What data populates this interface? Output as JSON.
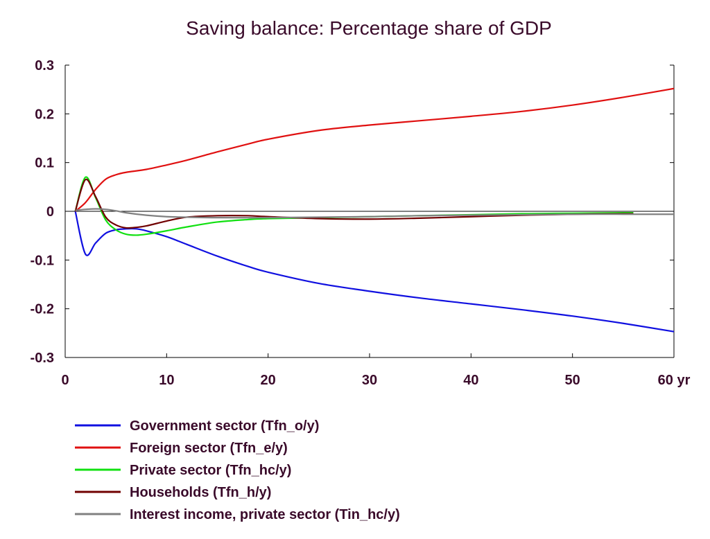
{
  "chart_data": {
    "type": "line",
    "title": "Saving balance: Percentage share of GDP",
    "xlabel": "",
    "ylabel": "",
    "xlim": [
      0,
      60
    ],
    "ylim": [
      -0.3,
      0.3
    ],
    "x_ticks": [
      {
        "value": 0,
        "label": "0"
      },
      {
        "value": 10,
        "label": "10"
      },
      {
        "value": 20,
        "label": "20"
      },
      {
        "value": 30,
        "label": "30"
      },
      {
        "value": 40,
        "label": "40"
      },
      {
        "value": 50,
        "label": "50"
      },
      {
        "value": 60,
        "label": "60 yr"
      }
    ],
    "y_ticks": [
      {
        "value": 0.3,
        "label": "0.3"
      },
      {
        "value": 0.2,
        "label": "0.2"
      },
      {
        "value": 0.1,
        "label": "0.1"
      },
      {
        "value": 0,
        "label": "0"
      },
      {
        "value": -0.1,
        "label": "-0.1"
      },
      {
        "value": -0.2,
        "label": "-0.2"
      },
      {
        "value": -0.3,
        "label": "-0.3"
      }
    ],
    "zero_line": true,
    "grid": false,
    "legend_position": "bottom",
    "series": [
      {
        "name": "Government sector (Tfn_o/y)",
        "color": "#1010e0",
        "points": [
          [
            1,
            0
          ],
          [
            2,
            -0.088
          ],
          [
            3,
            -0.065
          ],
          [
            4,
            -0.045
          ],
          [
            5,
            -0.038
          ],
          [
            6,
            -0.036
          ],
          [
            7,
            -0.036
          ],
          [
            8,
            -0.04
          ],
          [
            10,
            -0.052
          ],
          [
            12,
            -0.068
          ],
          [
            15,
            -0.092
          ],
          [
            18,
            -0.113
          ],
          [
            20,
            -0.125
          ],
          [
            25,
            -0.148
          ],
          [
            30,
            -0.164
          ],
          [
            35,
            -0.178
          ],
          [
            40,
            -0.19
          ],
          [
            45,
            -0.202
          ],
          [
            50,
            -0.215
          ],
          [
            55,
            -0.23
          ],
          [
            60,
            -0.247
          ]
        ]
      },
      {
        "name": "Foreign sector (Tfn_e/y)",
        "color": "#e01010",
        "points": [
          [
            1,
            0
          ],
          [
            2,
            0.018
          ],
          [
            3,
            0.045
          ],
          [
            4,
            0.066
          ],
          [
            5,
            0.075
          ],
          [
            6,
            0.08
          ],
          [
            8,
            0.086
          ],
          [
            10,
            0.095
          ],
          [
            12,
            0.105
          ],
          [
            15,
            0.122
          ],
          [
            18,
            0.138
          ],
          [
            20,
            0.148
          ],
          [
            25,
            0.166
          ],
          [
            30,
            0.177
          ],
          [
            35,
            0.186
          ],
          [
            40,
            0.195
          ],
          [
            45,
            0.205
          ],
          [
            50,
            0.218
          ],
          [
            55,
            0.234
          ],
          [
            60,
            0.252
          ]
        ]
      },
      {
        "name": "Private sector (Tfn_hc/y)",
        "color": "#10e010",
        "points": [
          [
            1,
            0
          ],
          [
            2,
            0.07
          ],
          [
            3,
            0.028
          ],
          [
            4,
            -0.018
          ],
          [
            5,
            -0.038
          ],
          [
            6,
            -0.047
          ],
          [
            7,
            -0.049
          ],
          [
            8,
            -0.047
          ],
          [
            10,
            -0.04
          ],
          [
            12,
            -0.032
          ],
          [
            15,
            -0.022
          ],
          [
            18,
            -0.017
          ],
          [
            20,
            -0.015
          ],
          [
            25,
            -0.013
          ],
          [
            30,
            -0.011
          ],
          [
            35,
            -0.009
          ],
          [
            40,
            -0.007
          ],
          [
            45,
            -0.005
          ],
          [
            50,
            -0.004
          ],
          [
            55,
            -0.003
          ],
          [
            56,
            -0.003
          ]
        ]
      },
      {
        "name": "Households (Tfn_h/y)",
        "color": "#700000",
        "points": [
          [
            1,
            0
          ],
          [
            2,
            0.065
          ],
          [
            3,
            0.03
          ],
          [
            4,
            -0.012
          ],
          [
            5,
            -0.028
          ],
          [
            6,
            -0.034
          ],
          [
            7,
            -0.033
          ],
          [
            8,
            -0.03
          ],
          [
            10,
            -0.02
          ],
          [
            12,
            -0.012
          ],
          [
            15,
            -0.009
          ],
          [
            18,
            -0.009
          ],
          [
            20,
            -0.011
          ],
          [
            25,
            -0.015
          ],
          [
            30,
            -0.016
          ],
          [
            35,
            -0.014
          ],
          [
            40,
            -0.011
          ],
          [
            45,
            -0.008
          ],
          [
            50,
            -0.006
          ],
          [
            55,
            -0.005
          ],
          [
            56,
            -0.005
          ]
        ]
      },
      {
        "name": "Interest income, private sector (Tin_hc/y)",
        "color": "#808080",
        "points": [
          [
            1,
            0.002
          ],
          [
            2,
            0.004
          ],
          [
            3,
            0.005
          ],
          [
            4,
            0.004
          ],
          [
            5,
            0.001
          ],
          [
            6,
            -0.003
          ],
          [
            8,
            -0.008
          ],
          [
            10,
            -0.011
          ],
          [
            12,
            -0.012
          ],
          [
            15,
            -0.013
          ],
          [
            20,
            -0.013
          ],
          [
            25,
            -0.012
          ],
          [
            30,
            -0.011
          ],
          [
            35,
            -0.009
          ],
          [
            40,
            -0.008
          ],
          [
            45,
            -0.007
          ],
          [
            50,
            -0.006
          ],
          [
            55,
            -0.006
          ],
          [
            60,
            -0.006
          ]
        ]
      }
    ]
  }
}
